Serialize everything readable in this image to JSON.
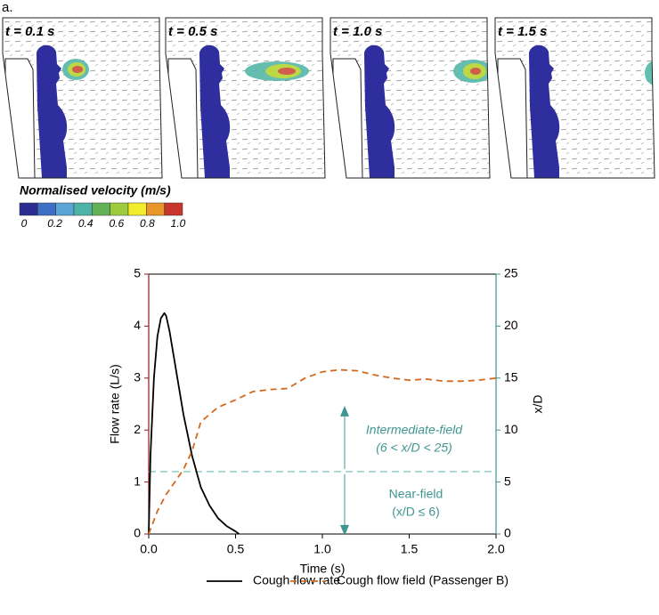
{
  "figure_label": "a.",
  "panels": [
    {
      "title": "t = 0.1 s"
    },
    {
      "title": "t = 0.5 s"
    },
    {
      "title": "t = 1.0 s"
    },
    {
      "title": "t = 1.5 s"
    }
  ],
  "colorbar": {
    "title": "Normalised velocity (m/s)",
    "colors": [
      "#2b2c8f",
      "#3d6fc4",
      "#5aa5d6",
      "#4db3a6",
      "#62b157",
      "#9ccc3c",
      "#f2ec2a",
      "#e8962a",
      "#c8352c"
    ],
    "lim": [
      0,
      1
    ],
    "ticks": [
      0,
      0.2,
      0.4,
      0.6,
      0.8,
      {
        "value": 1,
        "label": "1.0"
      }
    ]
  },
  "chart_data": {
    "type": "line",
    "xlabel": "Time (s)",
    "ylabel": "Flow rate (L/s)",
    "y2label": "x/D",
    "xlim": [
      0,
      2
    ],
    "xticks": [
      {
        "value": 0,
        "label": "0.0"
      },
      0.5,
      {
        "value": 1,
        "label": "1.0"
      },
      1.5,
      {
        "value": 2,
        "label": "2.0"
      }
    ],
    "ylim": [
      0,
      5
    ],
    "yticks": [
      0,
      1,
      2,
      3,
      4,
      5
    ],
    "y2lim": [
      0,
      25
    ],
    "y2ticks": [
      0,
      5,
      10,
      15,
      20,
      25
    ],
    "ycolor": "#8b1a1a",
    "y2color": "#3f9590",
    "series": [
      {
        "name": "Cough flow rate",
        "color": "#000000",
        "dash": false,
        "x": [
          0,
          0.01,
          0.03,
          0.05,
          0.07,
          0.09,
          0.1,
          0.12,
          0.15,
          0.2,
          0.25,
          0.3,
          0.35,
          0.4,
          0.45,
          0.5,
          0.52
        ],
        "values": [
          0,
          1.5,
          3.0,
          3.8,
          4.15,
          4.25,
          4.2,
          3.9,
          3.3,
          2.3,
          1.5,
          0.9,
          0.55,
          0.3,
          0.15,
          0.05,
          0
        ]
      },
      {
        "name": "Cough flow field (Passenger B)",
        "color": "#d2691e",
        "dash": true,
        "axis": "y2",
        "x": [
          0,
          0.05,
          0.1,
          0.15,
          0.2,
          0.25,
          0.3,
          0.4,
          0.5,
          0.6,
          0.7,
          0.8,
          0.9,
          1.0,
          1.1,
          1.2,
          1.3,
          1.4,
          1.5,
          1.6,
          1.7,
          1.8,
          1.9,
          2.0
        ],
        "values": [
          0,
          2.2,
          3.8,
          5,
          6.2,
          8,
          10.8,
          12.2,
          12.9,
          13.7,
          13.9,
          14,
          15,
          15.6,
          15.8,
          15.7,
          15.3,
          15,
          14.8,
          14.9,
          14.7,
          14.7,
          14.8,
          15
        ]
      }
    ],
    "reference_line": {
      "axis": "y2",
      "value": 6,
      "color": "#8fd0c8"
    },
    "annotations": [
      {
        "text": "Intermediate-field"
      },
      {
        "text": "(6 < x/D < 25)"
      },
      {
        "text": "Near-field"
      },
      {
        "text": "(x/D ≤ 6)"
      }
    ],
    "legend": "bottom"
  }
}
